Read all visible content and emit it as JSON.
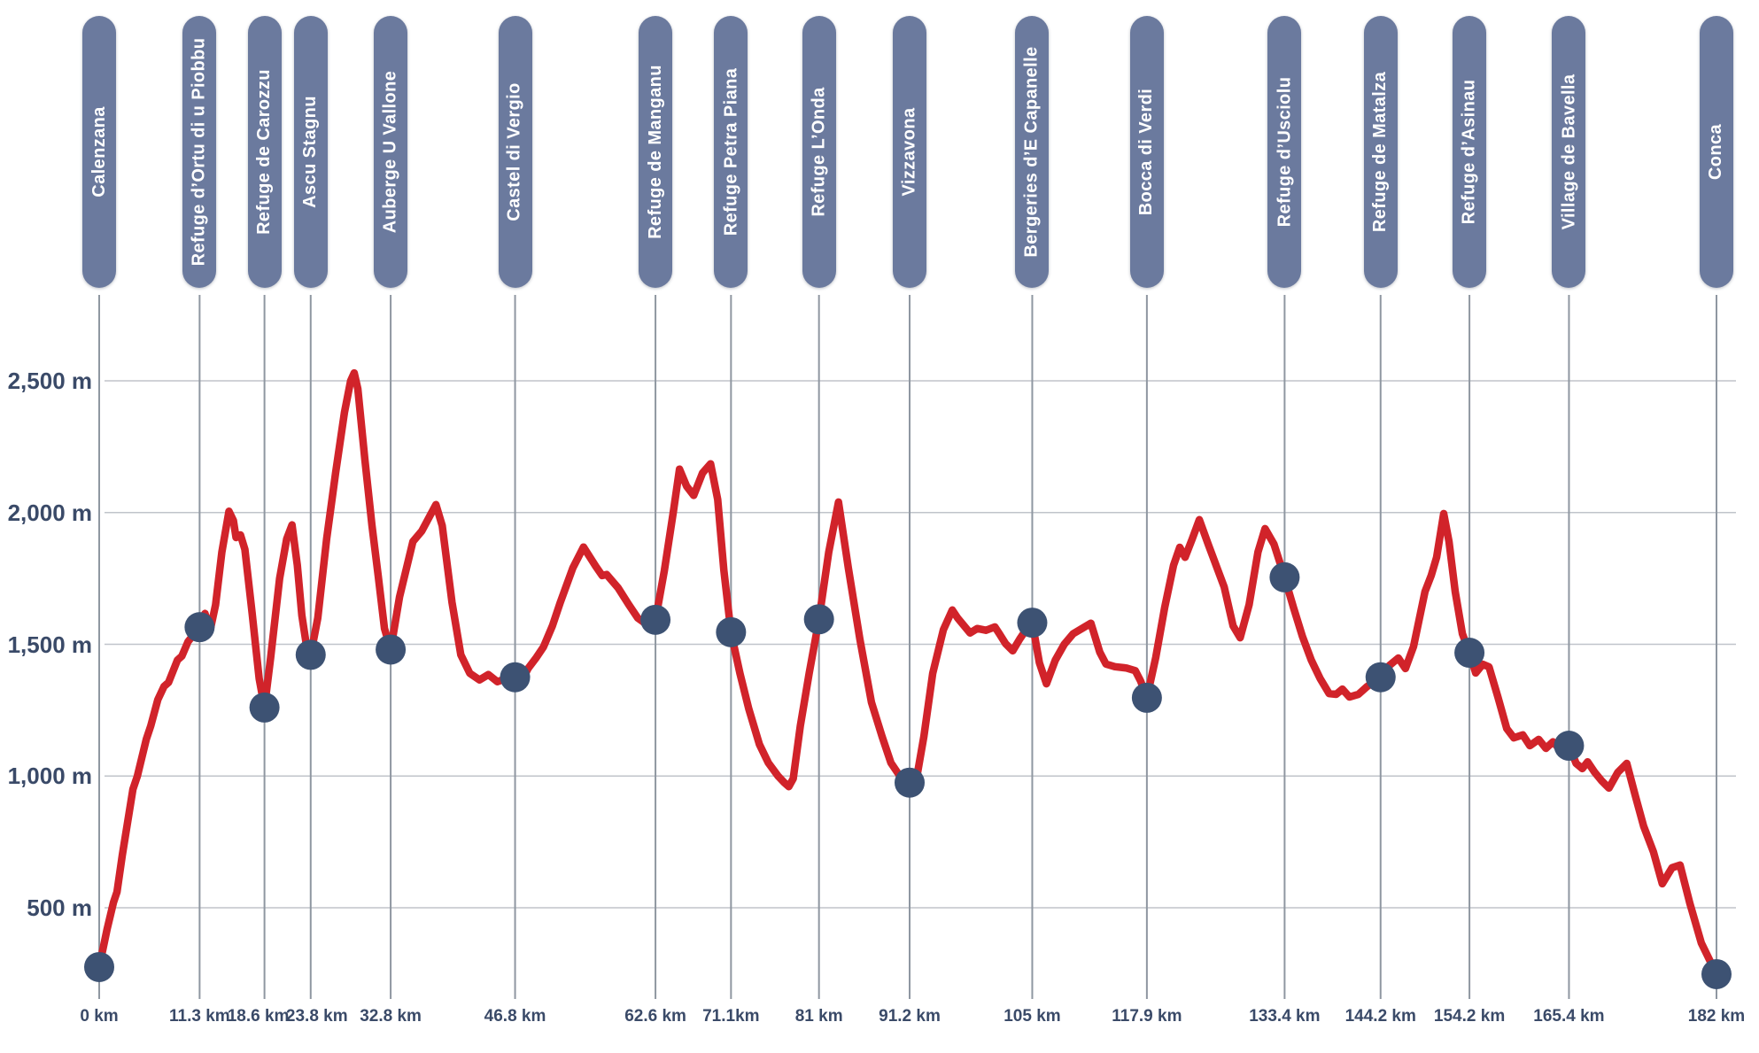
{
  "chart_data": {
    "type": "line",
    "description": "Elevation profile of the GR20 trail with stage waypoints from Calenzana to Conca",
    "x_unit": "km",
    "y_unit": "m",
    "xlim": [
      0,
      182
    ],
    "ylim": [
      150,
      2830
    ],
    "grid": true,
    "legend": false,
    "y_ticks": [
      {
        "value": 2500,
        "label": "2,500 m"
      },
      {
        "value": 2000,
        "label": "2,000 m"
      },
      {
        "value": 1500,
        "label": "1,500 m"
      },
      {
        "value": 1000,
        "label": "1,000 m"
      },
      {
        "value": 500,
        "label": "500 m"
      }
    ],
    "waypoints": [
      {
        "name": "Calenzana",
        "km": 0,
        "km_label": "0 km",
        "elevation_m": 275
      },
      {
        "name": "Refuge d’Ortu di u Piobbu",
        "km": 11.3,
        "km_label": "11.3 km",
        "elevation_m": 1565
      },
      {
        "name": "Refuge de Carozzu",
        "km": 18.6,
        "km_label": "18.6 km",
        "elevation_m": 1260
      },
      {
        "name": "Ascu Stagnu",
        "km": 23.8,
        "km_label": "23.8 km",
        "elevation_m": 1460
      },
      {
        "name": "Auberge U Vallone",
        "km": 32.8,
        "km_label": "32.8 km",
        "elevation_m": 1480
      },
      {
        "name": "Castel di Vergio",
        "km": 46.8,
        "km_label": "46.8 km",
        "elevation_m": 1375
      },
      {
        "name": "Refuge de Manganu",
        "km": 62.6,
        "km_label": "62.6 km",
        "elevation_m": 1593
      },
      {
        "name": "Refuge Petra Piana",
        "km": 71.1,
        "km_label": "71.1km",
        "elevation_m": 1546
      },
      {
        "name": "Refuge L’Onda",
        "km": 81,
        "km_label": "81 km",
        "elevation_m": 1595
      },
      {
        "name": "Vizzavona",
        "km": 91.2,
        "km_label": "91.2 km",
        "elevation_m": 975
      },
      {
        "name": "Bergeries d’E Capanelle",
        "km": 105,
        "km_label": "105 km",
        "elevation_m": 1582
      },
      {
        "name": "Bocca di Verdi",
        "km": 117.9,
        "km_label": "117.9 km",
        "elevation_m": 1297
      },
      {
        "name": "Refuge d’Usciolu",
        "km": 133.4,
        "km_label": "133.4 km",
        "elevation_m": 1754
      },
      {
        "name": "Refuge de Matalza",
        "km": 144.2,
        "km_label": "144.2 km",
        "elevation_m": 1375
      },
      {
        "name": "Refuge d’Asinau",
        "km": 154.2,
        "km_label": "154.2 km",
        "elevation_m": 1468
      },
      {
        "name": "Village de Bavella",
        "km": 165.4,
        "km_label": "165.4 km",
        "elevation_m": 1115
      },
      {
        "name": "Conca",
        "km": 182,
        "km_label": "182 km",
        "elevation_m": 248
      }
    ],
    "profile": [
      [
        0,
        275
      ],
      [
        0.9,
        420
      ],
      [
        1.6,
        520
      ],
      [
        2.0,
        560
      ],
      [
        2.6,
        700
      ],
      [
        3.8,
        950
      ],
      [
        4.3,
        1000
      ],
      [
        5.3,
        1140
      ],
      [
        5.8,
        1190
      ],
      [
        6.6,
        1290
      ],
      [
        7.3,
        1340
      ],
      [
        7.8,
        1355
      ],
      [
        8.8,
        1440
      ],
      [
        9.3,
        1455
      ],
      [
        10.0,
        1510
      ],
      [
        11.3,
        1565
      ],
      [
        11.9,
        1617
      ],
      [
        12.5,
        1555
      ],
      [
        13.1,
        1650
      ],
      [
        13.8,
        1850
      ],
      [
        14.6,
        2005
      ],
      [
        15.1,
        1970
      ],
      [
        15.4,
        1905
      ],
      [
        15.9,
        1915
      ],
      [
        16.4,
        1860
      ],
      [
        17.2,
        1620
      ],
      [
        18.0,
        1370
      ],
      [
        18.6,
        1260
      ],
      [
        19.3,
        1450
      ],
      [
        20.3,
        1750
      ],
      [
        21.1,
        1900
      ],
      [
        21.7,
        1953
      ],
      [
        22.3,
        1800
      ],
      [
        22.8,
        1610
      ],
      [
        23.3,
        1500
      ],
      [
        23.8,
        1460
      ],
      [
        24.6,
        1600
      ],
      [
        25.6,
        1900
      ],
      [
        26.6,
        2150
      ],
      [
        27.6,
        2380
      ],
      [
        28.3,
        2500
      ],
      [
        28.7,
        2530
      ],
      [
        29.1,
        2470
      ],
      [
        29.9,
        2200
      ],
      [
        30.7,
        1950
      ],
      [
        31.4,
        1760
      ],
      [
        32.1,
        1560
      ],
      [
        32.8,
        1480
      ],
      [
        33.8,
        1680
      ],
      [
        35.3,
        1890
      ],
      [
        36.3,
        1930
      ],
      [
        37.9,
        2030
      ],
      [
        38.6,
        1950
      ],
      [
        39.7,
        1660
      ],
      [
        40.7,
        1460
      ],
      [
        41.7,
        1390
      ],
      [
        42.8,
        1365
      ],
      [
        43.8,
        1385
      ],
      [
        44.8,
        1358
      ],
      [
        45.8,
        1370
      ],
      [
        46.8,
        1375
      ],
      [
        47.5,
        1360
      ],
      [
        48.3,
        1410
      ],
      [
        49.2,
        1450
      ],
      [
        50.0,
        1490
      ],
      [
        51.0,
        1570
      ],
      [
        51.9,
        1660
      ],
      [
        53.3,
        1790
      ],
      [
        54.5,
        1869
      ],
      [
        55.9,
        1795
      ],
      [
        56.6,
        1761
      ],
      [
        57.1,
        1765
      ],
      [
        58.4,
        1714
      ],
      [
        59.6,
        1650
      ],
      [
        60.6,
        1600
      ],
      [
        61.3,
        1583
      ],
      [
        62.6,
        1593
      ],
      [
        63.6,
        1780
      ],
      [
        64.6,
        2000
      ],
      [
        65.3,
        2165
      ],
      [
        66.1,
        2100
      ],
      [
        66.9,
        2065
      ],
      [
        67.9,
        2150
      ],
      [
        68.8,
        2185
      ],
      [
        69.6,
        2050
      ],
      [
        70.3,
        1780
      ],
      [
        71.1,
        1546
      ],
      [
        72.1,
        1390
      ],
      [
        73.1,
        1255
      ],
      [
        74.3,
        1120
      ],
      [
        75.3,
        1050
      ],
      [
        76.4,
        1000
      ],
      [
        77.1,
        975
      ],
      [
        77.6,
        960
      ],
      [
        78.1,
        990
      ],
      [
        78.9,
        1190
      ],
      [
        79.9,
        1390
      ],
      [
        81,
        1595
      ],
      [
        82.1,
        1850
      ],
      [
        83.2,
        2040
      ],
      [
        84.3,
        1790
      ],
      [
        85.6,
        1520
      ],
      [
        86.9,
        1280
      ],
      [
        88.1,
        1150
      ],
      [
        89.1,
        1050
      ],
      [
        90.1,
        1000
      ],
      [
        91.2,
        975
      ],
      [
        91.8,
        955
      ],
      [
        92.8,
        1150
      ],
      [
        93.8,
        1390
      ],
      [
        95.0,
        1555
      ],
      [
        96.0,
        1630
      ],
      [
        96.6,
        1600
      ],
      [
        98.0,
        1543
      ],
      [
        98.8,
        1560
      ],
      [
        99.8,
        1553
      ],
      [
        100.8,
        1566
      ],
      [
        101.3,
        1540
      ],
      [
        102.0,
        1502
      ],
      [
        102.8,
        1475
      ],
      [
        103.6,
        1520
      ],
      [
        104.3,
        1555
      ],
      [
        105,
        1582
      ],
      [
        105.8,
        1430
      ],
      [
        106.6,
        1350
      ],
      [
        107.6,
        1440
      ],
      [
        108.6,
        1500
      ],
      [
        109.6,
        1540
      ],
      [
        110.6,
        1560
      ],
      [
        111.6,
        1580
      ],
      [
        112.6,
        1470
      ],
      [
        113.3,
        1425
      ],
      [
        114.3,
        1415
      ],
      [
        115.6,
        1410
      ],
      [
        116.6,
        1400
      ],
      [
        117.2,
        1360
      ],
      [
        117.9,
        1297
      ],
      [
        118.9,
        1450
      ],
      [
        119.9,
        1640
      ],
      [
        120.9,
        1800
      ],
      [
        121.6,
        1868
      ],
      [
        122.2,
        1830
      ],
      [
        123.0,
        1900
      ],
      [
        123.8,
        1973
      ],
      [
        124.8,
        1880
      ],
      [
        125.8,
        1790
      ],
      [
        126.6,
        1717
      ],
      [
        127.6,
        1570
      ],
      [
        128.4,
        1525
      ],
      [
        129.4,
        1650
      ],
      [
        130.4,
        1850
      ],
      [
        131.2,
        1939
      ],
      [
        132.2,
        1880
      ],
      [
        133.4,
        1754
      ],
      [
        134.4,
        1640
      ],
      [
        135.4,
        1530
      ],
      [
        136.4,
        1440
      ],
      [
        137.4,
        1370
      ],
      [
        138.4,
        1313
      ],
      [
        139.2,
        1310
      ],
      [
        139.9,
        1330
      ],
      [
        140.7,
        1300
      ],
      [
        141.7,
        1310
      ],
      [
        142.7,
        1340
      ],
      [
        144.2,
        1375
      ],
      [
        145.2,
        1420
      ],
      [
        146.2,
        1448
      ],
      [
        147.0,
        1408
      ],
      [
        147.9,
        1491
      ],
      [
        149.2,
        1700
      ],
      [
        149.9,
        1761
      ],
      [
        150.5,
        1830
      ],
      [
        151.3,
        1996
      ],
      [
        151.9,
        1890
      ],
      [
        152.6,
        1700
      ],
      [
        153.4,
        1540
      ],
      [
        154.2,
        1468
      ],
      [
        154.9,
        1391
      ],
      [
        155.7,
        1424
      ],
      [
        156.4,
        1414
      ],
      [
        157.4,
        1300
      ],
      [
        158.4,
        1180
      ],
      [
        159.2,
        1145
      ],
      [
        160.2,
        1156
      ],
      [
        161.0,
        1115
      ],
      [
        162.0,
        1139
      ],
      [
        162.8,
        1105
      ],
      [
        163.6,
        1130
      ],
      [
        164.4,
        1100
      ],
      [
        165.4,
        1115
      ],
      [
        166.2,
        1048
      ],
      [
        166.9,
        1028
      ],
      [
        167.5,
        1054
      ],
      [
        168.3,
        1014
      ],
      [
        169.1,
        981
      ],
      [
        169.9,
        954
      ],
      [
        170.9,
        1014
      ],
      [
        171.9,
        1048
      ],
      [
        172.9,
        921
      ],
      [
        173.8,
        810
      ],
      [
        174.9,
        712
      ],
      [
        175.9,
        591
      ],
      [
        177.0,
        652
      ],
      [
        177.9,
        662
      ],
      [
        179.0,
        517
      ],
      [
        180.3,
        366
      ],
      [
        182,
        248
      ]
    ]
  },
  "colors": {
    "background": "#ffffff",
    "line_red": "#d1232a",
    "pill_fill": "#6b7a9e",
    "pill_text": "#ffffff",
    "marker_fill": "#3d5273",
    "axis_text": "#3a4a68",
    "grid_vertical": "#8f97a1",
    "grid_horizontal": "#c0c4ca"
  }
}
